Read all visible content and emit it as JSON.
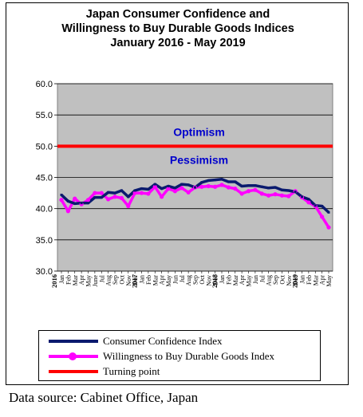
{
  "chart_data": {
    "type": "line",
    "title": [
      "Japan Consumer Confidence and",
      "Willingness to Buy Durable Goods Indices",
      "January 2016 - May 2019"
    ],
    "ylim": [
      30,
      60
    ],
    "yticks": [
      "30.0",
      "35.0",
      "40.0",
      "45.0",
      "50.0",
      "55.0",
      "60.0"
    ],
    "x_months": [
      "Jan",
      "Feb",
      "Mar",
      "Apr",
      "May",
      "June",
      "Jul",
      "Aug",
      "Sep",
      "Oct",
      "Nov",
      "Dec",
      "Jan",
      "Feb",
      "Mar",
      "Apr",
      "May",
      "Jun",
      "Jul",
      "Aug",
      "Sep",
      "Oct",
      "Nov",
      "Dec",
      "Jan",
      "Feb",
      "Mar",
      "Apr",
      "May",
      "Jun",
      "Jul",
      "Aug",
      "Sep",
      "Oct",
      "Nov",
      "Dec",
      "Jan",
      "Feb",
      "Mar",
      "Apr",
      "May"
    ],
    "year_labels": [
      {
        "index": 0,
        "label": "2016"
      },
      {
        "index": 12,
        "label": "2017"
      },
      {
        "index": 24,
        "label": "2018"
      },
      {
        "index": 36,
        "label": "2019"
      }
    ],
    "grid": true,
    "plot_bg": "#c0c0c0",
    "annotations": [
      {
        "text": "Optimism",
        "y": 52.3,
        "color": "#0000cc"
      },
      {
        "text": "Pessimism",
        "y": 47.8,
        "color": "#0000cc"
      }
    ],
    "series": [
      {
        "name": "Consumer Confidence Index",
        "color": "#0a1a6e",
        "values": [
          42.2,
          41.2,
          40.8,
          40.9,
          40.9,
          41.8,
          41.8,
          42.6,
          42.5,
          42.9,
          41.9,
          42.9,
          43.2,
          43.1,
          43.9,
          43.2,
          43.6,
          43.3,
          43.9,
          43.8,
          43.4,
          44.2,
          44.5,
          44.6,
          44.7,
          44.3,
          44.3,
          43.6,
          43.7,
          43.7,
          43.5,
          43.3,
          43.4,
          43.0,
          42.9,
          42.7,
          41.9,
          41.5,
          40.5,
          40.4,
          39.4
        ]
      },
      {
        "name": "Willingness to Buy Durable Goods Index",
        "color": "#ff00ff",
        "values": [
          41.4,
          39.6,
          41.6,
          40.7,
          41.4,
          42.5,
          42.5,
          41.5,
          41.9,
          41.7,
          40.4,
          42.5,
          42.5,
          42.4,
          43.5,
          41.9,
          43.2,
          42.8,
          43.3,
          42.6,
          43.4,
          43.5,
          43.6,
          43.5,
          43.8,
          43.4,
          43.2,
          42.4,
          42.8,
          43.0,
          42.4,
          42.1,
          42.3,
          42.1,
          42.0,
          42.8,
          41.8,
          41.0,
          40.4,
          38.7,
          37.0
        ]
      },
      {
        "name": "Turning point",
        "color": "#ff0000",
        "values": [
          50,
          50,
          50,
          50,
          50,
          50,
          50,
          50,
          50,
          50,
          50,
          50,
          50,
          50,
          50,
          50,
          50,
          50,
          50,
          50,
          50,
          50,
          50,
          50,
          50,
          50,
          50,
          50,
          50,
          50,
          50,
          50,
          50,
          50,
          50,
          50,
          50,
          50,
          50,
          50,
          50
        ]
      }
    ],
    "legend_position": "bottom"
  },
  "source_text": "Data source: Cabinet Office, Japan"
}
